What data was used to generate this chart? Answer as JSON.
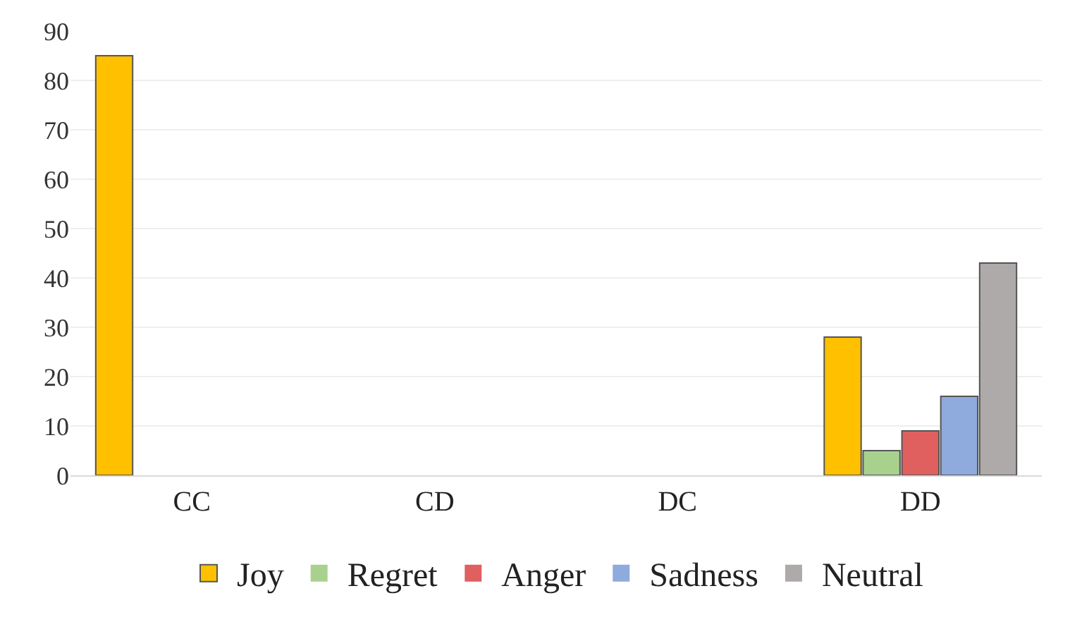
{
  "chart_data": {
    "type": "bar",
    "categories": [
      "CC",
      "CD",
      "DC",
      "DD"
    ],
    "series": [
      {
        "name": "Joy",
        "color": "#ffc000",
        "values": [
          85,
          0,
          0,
          28
        ]
      },
      {
        "name": "Regret",
        "color": "#a9d18e",
        "values": [
          0,
          0,
          0,
          5
        ]
      },
      {
        "name": "Anger",
        "color": "#e06060",
        "values": [
          0,
          0,
          0,
          9
        ]
      },
      {
        "name": "Sadness",
        "color": "#8faadc",
        "values": [
          0,
          0,
          0,
          16
        ]
      },
      {
        "name": "Neutral",
        "color": "#aeaaaa",
        "values": [
          0,
          0,
          0,
          43
        ]
      }
    ],
    "ylim": [
      0,
      90
    ],
    "yticks": [
      0,
      10,
      20,
      30,
      40,
      50,
      60,
      70,
      80,
      90
    ],
    "grid": "y",
    "legend": "bottom"
  }
}
